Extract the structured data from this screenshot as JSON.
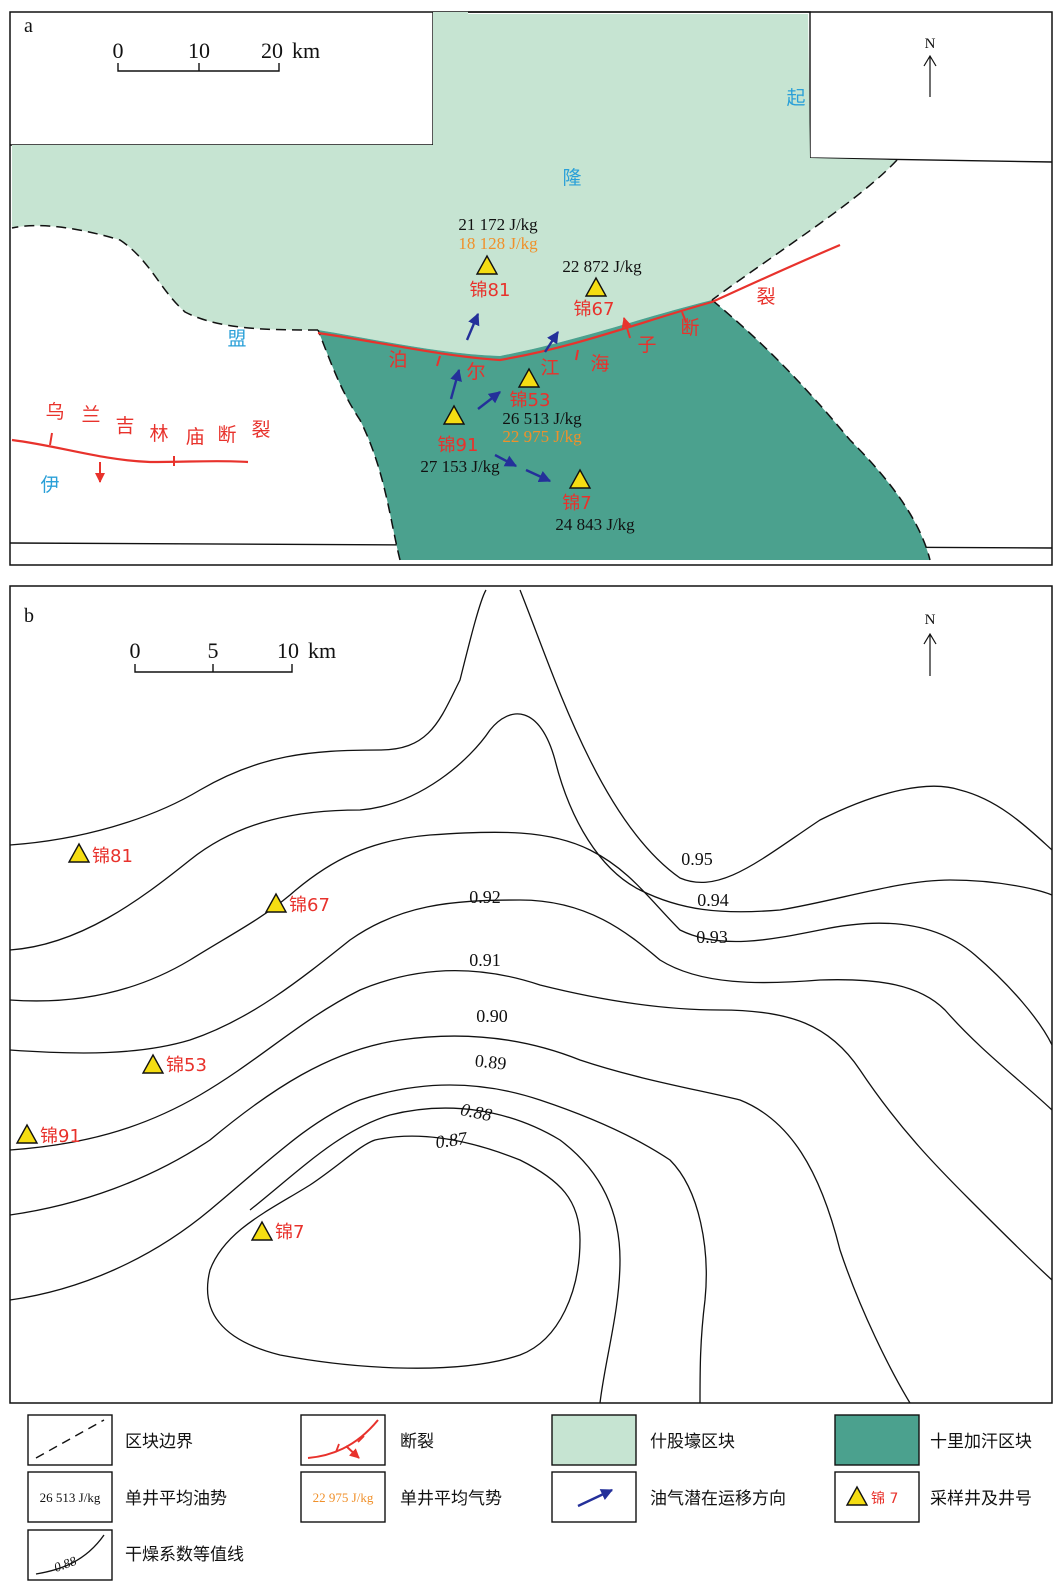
{
  "panel_a": {
    "label": "a",
    "scale": {
      "ticks": [
        "0",
        "10",
        "20"
      ],
      "unit": "km"
    },
    "north": "N",
    "region_labels": {
      "qi": "起",
      "long": "隆",
      "meng": "盟",
      "yi": "伊"
    },
    "fault_wulanjilinmiao": [
      "乌",
      "兰",
      "吉",
      "林",
      "庙",
      "断",
      "裂"
    ],
    "fault_bojianghaizi": [
      "泊",
      "尔",
      "江",
      "海",
      "子",
      "断",
      "裂"
    ],
    "wells": [
      {
        "id": "jin81",
        "name": "锦81",
        "oil": "21 172 J/kg",
        "gas": "18 128 J/kg"
      },
      {
        "id": "jin67",
        "name": "锦67",
        "oil": "22 872 J/kg"
      },
      {
        "id": "jin53",
        "name": "锦53",
        "oil": "26 513 J/kg",
        "gas": "22 975 J/kg"
      },
      {
        "id": "jin91",
        "name": "锦91",
        "oil": "27 153 J/kg"
      },
      {
        "id": "jin7",
        "name": "锦7",
        "oil": "24 843 J/kg"
      }
    ]
  },
  "panel_b": {
    "label": "b",
    "scale": {
      "ticks": [
        "0",
        "5",
        "10"
      ],
      "unit": "km"
    },
    "north": "N",
    "wells": [
      "锦81",
      "锦67",
      "锦53",
      "锦91",
      "锦7"
    ],
    "contour_labels": [
      "0.95",
      "0.94",
      "0.93",
      "0.92",
      "0.91",
      "0.90",
      "0.89",
      "0.88",
      "0.87"
    ]
  },
  "legend": {
    "block_boundary": "区块边界",
    "fault": "断裂",
    "shiguhao": "什股壕区块",
    "shilijiahan": "十里加汗区块",
    "oil_sample": "26 513 J/kg",
    "oil_potential": "单井平均油势",
    "gas_sample": "22 975 J/kg",
    "gas_potential": "单井平均气势",
    "migration": "油气潜在运移方向",
    "well_sample": "锦 7",
    "well_label": "采样井及井号",
    "contour_sample": "0.88",
    "contour_label": "干燥系数等值线"
  },
  "colors": {
    "shiguhao": "#c6e4d2",
    "shilijiahan": "#4ba18e",
    "fault": "#e8322c",
    "arrow": "#24309a",
    "well": "#f5dd12",
    "gas_text": "#f0902a",
    "region_text": "#2aa0d8"
  }
}
